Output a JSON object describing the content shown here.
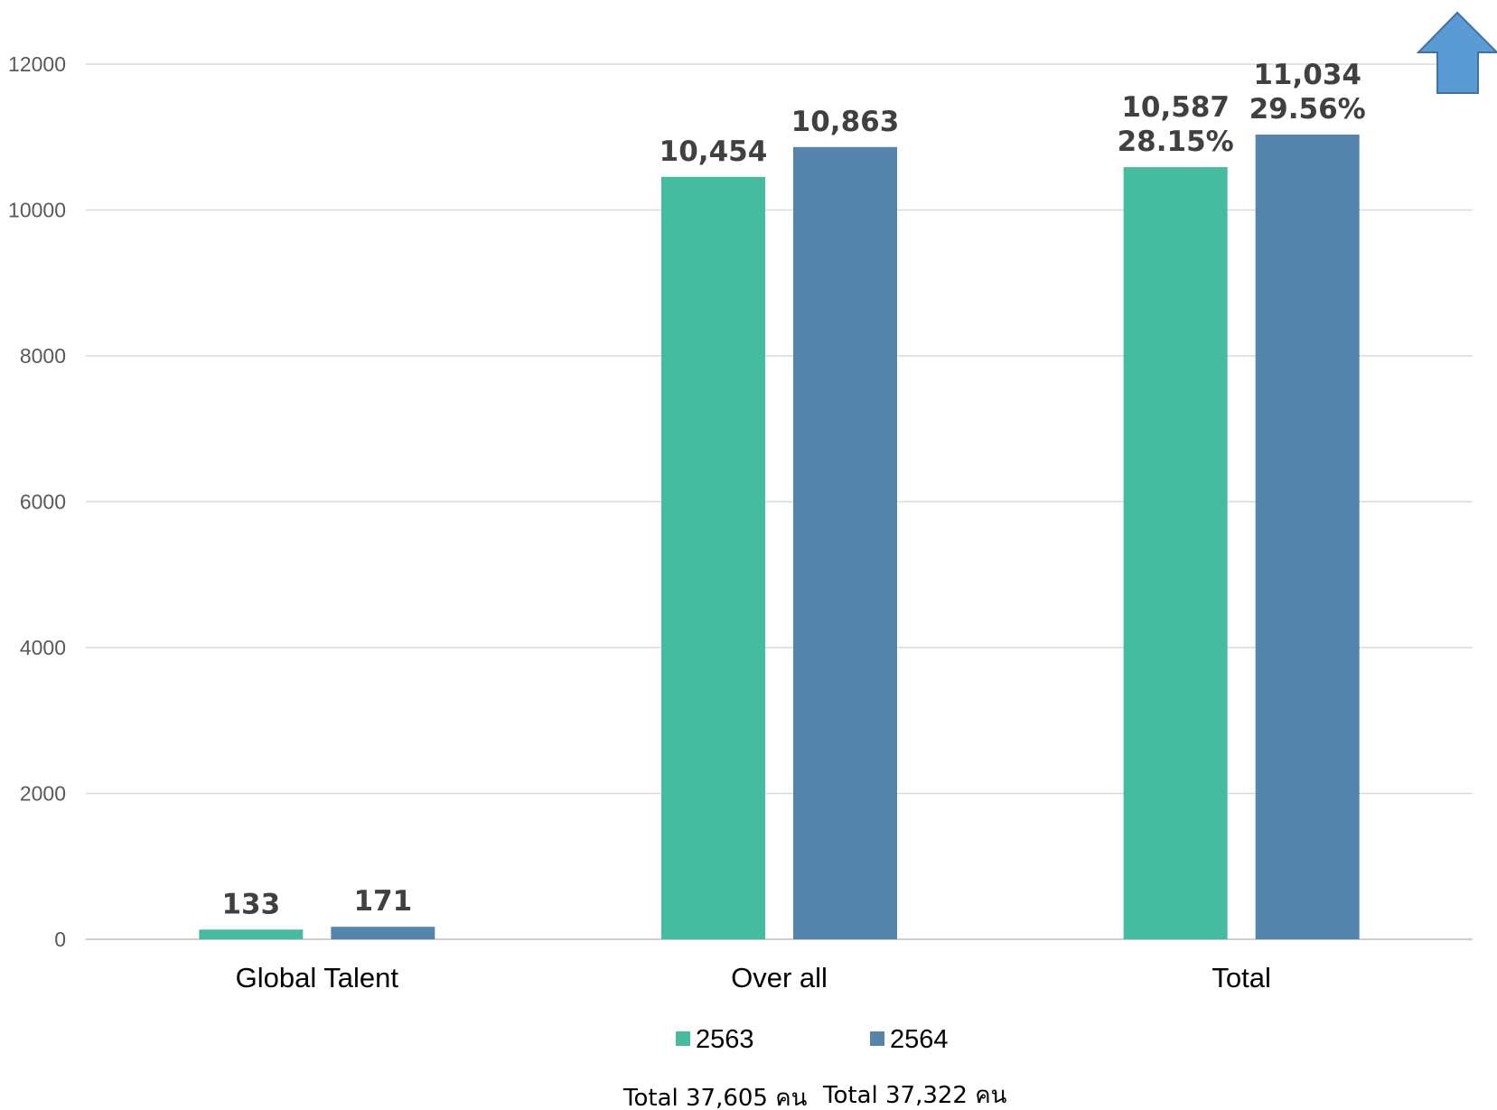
{
  "chart_data": {
    "type": "bar",
    "categories": [
      "Global  Talent",
      "Over all",
      "Total"
    ],
    "series": [
      {
        "name": "2563",
        "color": "#45BCA0",
        "values": [
          133,
          10454,
          10587
        ],
        "labels": [
          [
            "133"
          ],
          [
            "10,454"
          ],
          [
            "10,587",
            "28.15%"
          ]
        ]
      },
      {
        "name": "2564",
        "color": "#5584AC",
        "values": [
          171,
          10863,
          11034
        ],
        "labels": [
          [
            "171"
          ],
          [
            "10,863"
          ],
          [
            "11,034",
            "29.56%"
          ]
        ]
      }
    ],
    "ylim": [
      0,
      12000
    ],
    "yticks": [
      "0",
      "2000",
      "4000",
      "6000",
      "8000",
      "10000",
      "12000"
    ],
    "grid": true,
    "legend_position": "bottom",
    "annotations": {
      "totals": [
        "Total 37,605 คน",
        "Total 37,322 คน"
      ],
      "arrow": {
        "icon": "up-arrow-icon",
        "color": "#5B9BD5",
        "stroke": "#41719C"
      }
    }
  }
}
